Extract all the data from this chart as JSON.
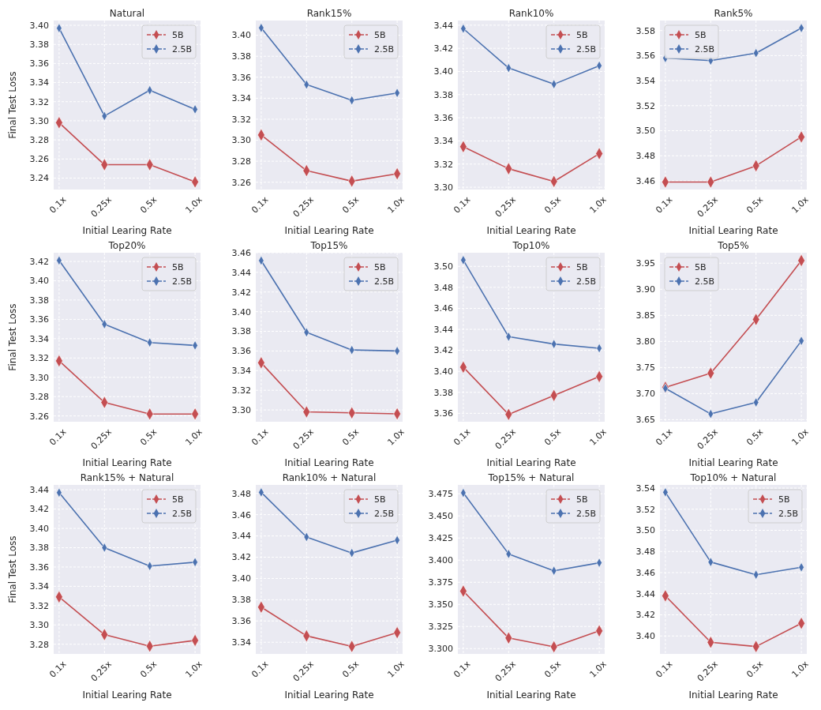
{
  "chart_data": [
    {
      "type": "line",
      "title": "Natural",
      "xlabel": "Initial Learing Rate",
      "ylabel": "Final Test Loss",
      "categories": [
        "0.1x",
        "0.25x",
        "0.5x",
        "1.0x"
      ],
      "series": [
        {
          "name": "5B",
          "color": "#c44e52",
          "values": [
            3.298,
            3.254,
            3.254,
            3.236
          ]
        },
        {
          "name": "2.5B",
          "color": "#4c72b0",
          "values": [
            3.397,
            3.305,
            3.332,
            3.312
          ]
        }
      ],
      "ylim": [
        3.228,
        3.405
      ],
      "yticks": [
        3.24,
        3.26,
        3.28,
        {
          "value": 3.3,
          "label": "3.30"
        },
        3.32,
        3.34,
        3.36,
        3.38,
        {
          "value": 3.4,
          "label": "3.40"
        }
      ],
      "grid": true,
      "legend": "top right",
      "marker": "diamond",
      "line_style": "solid"
    },
    {
      "type": "line",
      "title": "Rank15%",
      "xlabel": "Initial Learing Rate",
      "categories": [
        "0.1x",
        "0.25x",
        "0.5x",
        "1.0x"
      ],
      "series": [
        {
          "name": "5B",
          "color": "#c44e52",
          "values": [
            3.305,
            3.271,
            3.261,
            3.268
          ]
        },
        {
          "name": "2.5B",
          "color": "#4c72b0",
          "values": [
            3.407,
            3.353,
            3.338,
            3.345
          ]
        }
      ],
      "ylim": [
        3.253,
        3.414
      ],
      "yticks": [
        3.26,
        3.28,
        {
          "value": 3.3,
          "label": "3.30"
        },
        3.32,
        3.34,
        3.36,
        3.38,
        {
          "value": 3.4,
          "label": "3.40"
        }
      ],
      "grid": true,
      "legend": "top right",
      "marker": "diamond",
      "line_style": "solid"
    },
    {
      "type": "line",
      "title": "Rank10%",
      "xlabel": "Initial Learing Rate",
      "categories": [
        "0.1x",
        "0.25x",
        "0.5x",
        "1.0x"
      ],
      "series": [
        {
          "name": "5B",
          "color": "#c44e52",
          "values": [
            3.335,
            3.316,
            3.305,
            3.329
          ]
        },
        {
          "name": "2.5B",
          "color": "#4c72b0",
          "values": [
            3.437,
            3.403,
            3.389,
            3.405
          ]
        }
      ],
      "ylim": [
        3.298,
        3.444
      ],
      "yticks": [
        {
          "value": 3.3,
          "label": "3.30"
        },
        3.32,
        3.34,
        3.36,
        3.38,
        {
          "value": 3.4,
          "label": "3.40"
        },
        3.42,
        3.44
      ],
      "grid": true,
      "legend": "top right",
      "marker": "diamond",
      "line_style": "solid"
    },
    {
      "type": "line",
      "title": "Rank5%",
      "xlabel": "Initial Learing Rate",
      "categories": [
        "0.1x",
        "0.25x",
        "0.5x",
        "1.0x"
      ],
      "series": [
        {
          "name": "5B",
          "color": "#c44e52",
          "values": [
            3.459,
            3.459,
            3.472,
            3.495
          ]
        },
        {
          "name": "2.5B",
          "color": "#4c72b0",
          "values": [
            3.558,
            3.556,
            3.562,
            3.582
          ]
        }
      ],
      "ylim": [
        3.453,
        3.588
      ],
      "yticks": [
        3.46,
        3.48,
        {
          "value": 3.5,
          "label": "3.50"
        },
        3.52,
        3.54,
        3.56,
        3.58
      ],
      "grid": true,
      "legend": "top left",
      "marker": "diamond",
      "line_style": "solid"
    },
    {
      "type": "line",
      "title": "Top20%",
      "xlabel": "Initial Learing Rate",
      "ylabel": "Final Test Loss",
      "categories": [
        "0.1x",
        "0.25x",
        "0.5x",
        "1.0x"
      ],
      "series": [
        {
          "name": "5B",
          "color": "#c44e52",
          "values": [
            3.317,
            3.274,
            3.262,
            3.262
          ]
        },
        {
          "name": "2.5B",
          "color": "#4c72b0",
          "values": [
            3.421,
            3.355,
            3.336,
            3.333
          ]
        }
      ],
      "ylim": [
        3.254,
        3.429
      ],
      "yticks": [
        3.26,
        3.28,
        {
          "value": 3.3,
          "label": "3.30"
        },
        3.32,
        3.34,
        3.36,
        3.38,
        {
          "value": 3.4,
          "label": "3.40"
        },
        3.42
      ],
      "grid": true,
      "legend": "top right",
      "marker": "diamond",
      "line_style": "solid"
    },
    {
      "type": "line",
      "title": "Top15%",
      "xlabel": "Initial Learing Rate",
      "categories": [
        "0.1x",
        "0.25x",
        "0.5x",
        "1.0x"
      ],
      "series": [
        {
          "name": "5B",
          "color": "#c44e52",
          "values": [
            3.348,
            3.298,
            3.297,
            3.296
          ]
        },
        {
          "name": "2.5B",
          "color": "#4c72b0",
          "values": [
            3.452,
            3.379,
            3.361,
            3.36
          ]
        }
      ],
      "ylim": [
        3.288,
        3.46
      ],
      "yticks": [
        {
          "value": 3.3,
          "label": "3.30"
        },
        3.32,
        3.34,
        3.36,
        3.38,
        {
          "value": 3.4,
          "label": "3.40"
        },
        3.42,
        3.44,
        3.46
      ],
      "grid": true,
      "legend": "top right",
      "marker": "diamond",
      "line_style": "solid"
    },
    {
      "type": "line",
      "title": "Top10%",
      "xlabel": "Initial Learing Rate",
      "categories": [
        "0.1x",
        "0.25x",
        "0.5x",
        "1.0x"
      ],
      "series": [
        {
          "name": "5B",
          "color": "#c44e52",
          "values": [
            3.404,
            3.359,
            3.377,
            3.395
          ]
        },
        {
          "name": "2.5B",
          "color": "#4c72b0",
          "values": [
            3.506,
            3.433,
            3.426,
            3.422
          ]
        }
      ],
      "ylim": [
        3.352,
        3.513
      ],
      "yticks": [
        3.36,
        3.38,
        {
          "value": 3.4,
          "label": "3.40"
        },
        3.42,
        3.44,
        3.46,
        3.48,
        {
          "value": 3.5,
          "label": "3.50"
        }
      ],
      "grid": true,
      "legend": "top right",
      "marker": "diamond",
      "line_style": "solid"
    },
    {
      "type": "line",
      "title": "Top5%",
      "xlabel": "Initial Learing Rate",
      "categories": [
        "0.1x",
        "0.25x",
        "0.5x",
        "1.0x"
      ],
      "series": [
        {
          "name": "5B",
          "color": "#c44e52",
          "values": [
            3.712,
            3.739,
            3.842,
            3.955
          ]
        },
        {
          "name": "2.5B",
          "color": "#4c72b0",
          "values": [
            3.71,
            3.661,
            3.683,
            3.801
          ]
        }
      ],
      "ylim": [
        3.646,
        3.97
      ],
      "yticks": [
        3.65,
        {
          "value": 3.7,
          "label": "3.70"
        },
        3.75,
        {
          "value": 3.8,
          "label": "3.80"
        },
        3.85,
        {
          "value": 3.9,
          "label": "3.90"
        },
        3.95
      ],
      "grid": true,
      "legend": "top left",
      "marker": "diamond",
      "line_style": "solid"
    },
    {
      "type": "line",
      "title": "Rank15% + Natural",
      "xlabel": "Initial Learing Rate",
      "ylabel": "Final Test Loss",
      "categories": [
        "0.1x",
        "0.25x",
        "0.5x",
        "1.0x"
      ],
      "series": [
        {
          "name": "5B",
          "color": "#c44e52",
          "values": [
            3.329,
            3.29,
            3.278,
            3.284
          ]
        },
        {
          "name": "2.5B",
          "color": "#4c72b0",
          "values": [
            3.437,
            3.38,
            3.361,
            3.365
          ]
        }
      ],
      "ylim": [
        3.27,
        3.445
      ],
      "yticks": [
        3.28,
        {
          "value": 3.3,
          "label": "3.30"
        },
        3.32,
        3.34,
        3.36,
        3.38,
        {
          "value": 3.4,
          "label": "3.40"
        },
        3.42,
        3.44
      ],
      "grid": true,
      "legend": "top right",
      "marker": "diamond",
      "line_style": "solid"
    },
    {
      "type": "line",
      "title": "Rank10% + Natural",
      "xlabel": "Initial Learing Rate",
      "categories": [
        "0.1x",
        "0.25x",
        "0.5x",
        "1.0x"
      ],
      "series": [
        {
          "name": "5B",
          "color": "#c44e52",
          "values": [
            3.373,
            3.346,
            3.336,
            3.349
          ]
        },
        {
          "name": "2.5B",
          "color": "#4c72b0",
          "values": [
            3.481,
            3.439,
            3.424,
            3.436
          ]
        }
      ],
      "ylim": [
        3.329,
        3.488
      ],
      "yticks": [
        3.34,
        3.36,
        3.38,
        {
          "value": 3.4,
          "label": "3.40"
        },
        3.42,
        3.44,
        3.46,
        3.48
      ],
      "grid": true,
      "legend": "top right",
      "marker": "diamond",
      "line_style": "solid"
    },
    {
      "type": "line",
      "title": "Top15% + Natural",
      "xlabel": "Initial Learing Rate",
      "categories": [
        "0.1x",
        "0.25x",
        "0.5x",
        "1.0x"
      ],
      "series": [
        {
          "name": "5B",
          "color": "#c44e52",
          "values": [
            3.365,
            3.312,
            3.302,
            3.32
          ]
        },
        {
          "name": "2.5B",
          "color": "#4c72b0",
          "values": [
            3.476,
            3.407,
            3.388,
            3.397
          ]
        }
      ],
      "ylim": [
        3.294,
        3.485
      ],
      "yticks": [
        {
          "value": 3.3,
          "label": "3.300"
        },
        3.325,
        {
          "value": 3.35,
          "label": "3.350"
        },
        3.375,
        {
          "value": 3.4,
          "label": "3.400"
        },
        3.425,
        {
          "value": 3.45,
          "label": "3.450"
        },
        3.475
      ],
      "grid": true,
      "legend": "top right",
      "marker": "diamond",
      "line_style": "solid"
    },
    {
      "type": "line",
      "title": "Top10% + Natural",
      "xlabel": "Initial Learing Rate",
      "categories": [
        "0.1x",
        "0.25x",
        "0.5x",
        "1.0x"
      ],
      "series": [
        {
          "name": "5B",
          "color": "#c44e52",
          "values": [
            3.438,
            3.394,
            3.39,
            3.412
          ]
        },
        {
          "name": "2.5B",
          "color": "#4c72b0",
          "values": [
            3.536,
            3.47,
            3.458,
            3.465
          ]
        }
      ],
      "ylim": [
        3.383,
        3.543
      ],
      "yticks": [
        {
          "value": 3.4,
          "label": "3.40"
        },
        3.42,
        3.44,
        3.46,
        3.48,
        {
          "value": 3.5,
          "label": "3.50"
        },
        3.52,
        3.54
      ],
      "grid": true,
      "legend": "top right",
      "marker": "diamond",
      "line_style": "solid"
    }
  ]
}
